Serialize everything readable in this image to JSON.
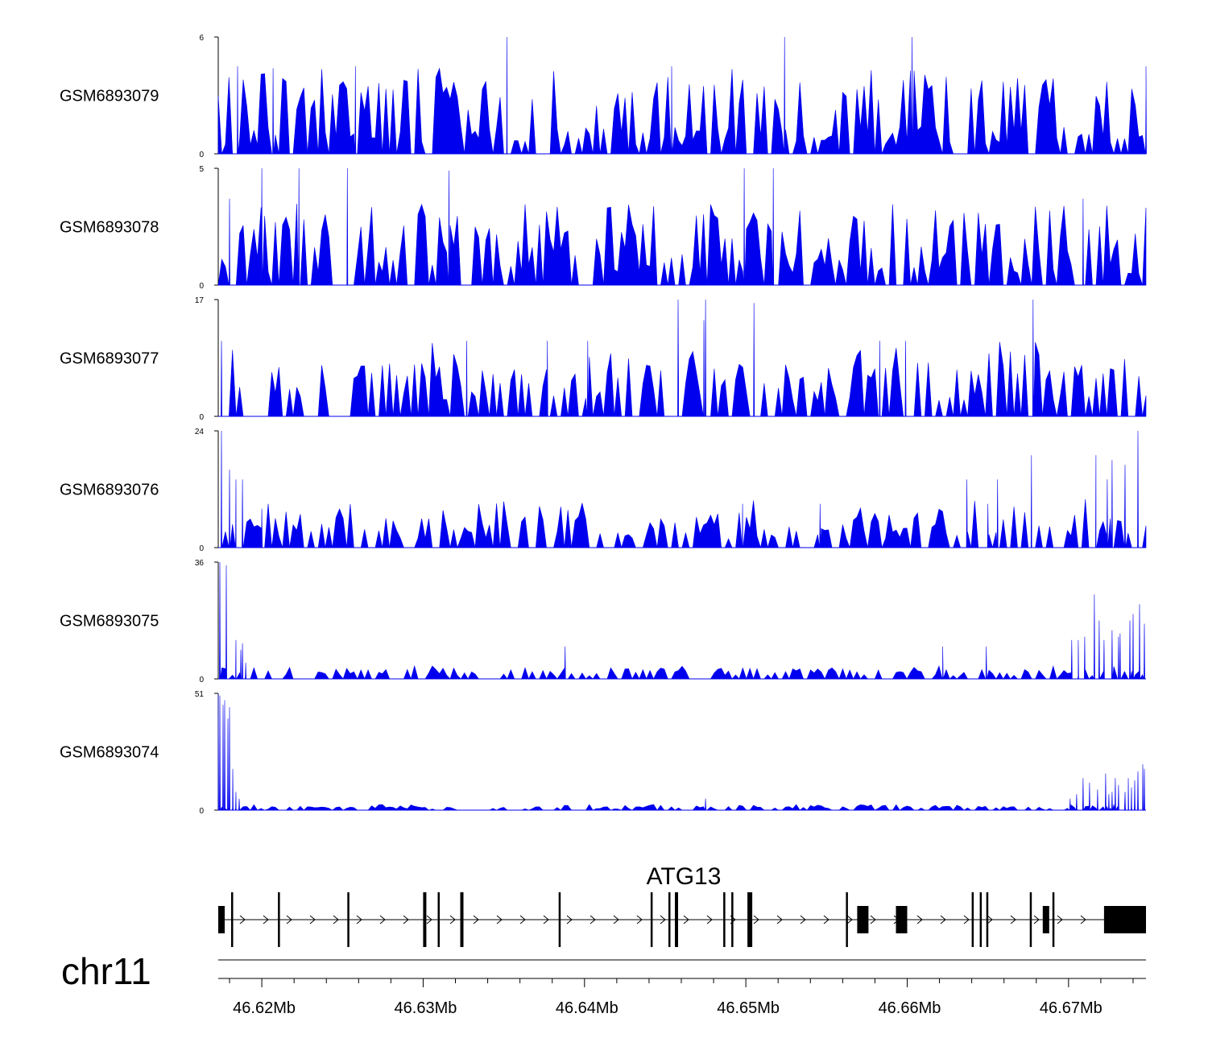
{
  "colors": {
    "signal": "#0000ee",
    "axis": "#000000",
    "gene": "#000000"
  },
  "chart_data": {
    "type": "area",
    "title": "",
    "chromosome": "chr11",
    "xlim": [
      46.6173,
      46.6748
    ],
    "x_unit": "Mb",
    "x_ticks": [
      {
        "value": 46.62,
        "label": "46.62Mb"
      },
      {
        "value": 46.63,
        "label": "46.63Mb"
      },
      {
        "value": 46.64,
        "label": "46.64Mb"
      },
      {
        "value": 46.65,
        "label": "46.65Mb"
      },
      {
        "value": 46.66,
        "label": "46.66Mb"
      },
      {
        "value": 46.67,
        "label": "46.67Mb"
      }
    ],
    "tracks": [
      {
        "name": "GSM6893079",
        "ymax": 6,
        "ymin_label": "0",
        "ymax_label": "6",
        "seed": 11,
        "base": 1.0,
        "spike_rate": 0.33,
        "spike_height": 4.4,
        "tall_peaks": [
          [
            46.6352,
            6.0
          ],
          [
            46.6524,
            6.0
          ],
          [
            46.6603,
            6.0
          ],
          [
            46.6258,
            4.5
          ],
          [
            46.6207,
            4.4
          ],
          [
            46.6748,
            4.5
          ],
          [
            46.6454,
            4.5
          ],
          [
            46.6185,
            4.5
          ]
        ],
        "edge_left": 0,
        "edge_right": 0
      },
      {
        "name": "GSM6893078",
        "ymax": 5,
        "ymin_label": "0",
        "ymax_label": "5",
        "seed": 23,
        "base": 1.2,
        "spike_rate": 0.32,
        "spike_height": 3.6,
        "tall_peaks": [
          [
            46.62,
            5.0
          ],
          [
            46.6223,
            5.0
          ],
          [
            46.6253,
            5.0
          ],
          [
            46.6316,
            4.9
          ],
          [
            46.6499,
            5.0
          ],
          [
            46.6517,
            5.0
          ],
          [
            46.618,
            3.7
          ],
          [
            46.6709,
            3.7
          ]
        ],
        "edge_left": 0,
        "edge_right": 0
      },
      {
        "name": "GSM6893077",
        "ymax": 17,
        "ymin_label": "0",
        "ymax_label": "17",
        "seed": 37,
        "base": 5.5,
        "spike_rate": 0.12,
        "spike_height": 11,
        "tall_peaks": [
          [
            46.6458,
            17.0
          ],
          [
            46.6475,
            17.0
          ],
          [
            46.6678,
            17.0
          ],
          [
            46.6505,
            16.5
          ],
          [
            46.6474,
            14.0
          ],
          [
            46.6377,
            11.0
          ],
          [
            46.6402,
            11.0
          ],
          [
            46.6327,
            11.0
          ],
          [
            46.6583,
            11.0
          ],
          [
            46.6599,
            11.0
          ],
          [
            46.6175,
            11.0
          ]
        ],
        "edge_left": 0,
        "edge_right": 0
      },
      {
        "name": "GSM6893076",
        "ymax": 24,
        "ymin_label": "0",
        "ymax_label": "24",
        "seed": 51,
        "base": 4.5,
        "spike_rate": 0.14,
        "spike_height": 10,
        "tall_peaks": [
          [
            46.6175,
            24.0
          ],
          [
            46.6743,
            24.0
          ],
          [
            46.6677,
            19.0
          ],
          [
            46.6717,
            19.0
          ],
          [
            46.6727,
            18.0
          ],
          [
            46.6735,
            17.0
          ],
          [
            46.618,
            16.0
          ],
          [
            46.6184,
            14.0
          ],
          [
            46.6188,
            14.0
          ],
          [
            46.6656,
            14.0
          ],
          [
            46.6637,
            14.0
          ],
          [
            46.6724,
            14.0
          ],
          [
            46.665,
            9.0
          ],
          [
            46.6546,
            9.0
          ],
          [
            46.6498,
            9.0
          ],
          [
            46.62,
            8.0
          ]
        ],
        "edge_left": 16,
        "edge_right": 0
      },
      {
        "name": "GSM6893075",
        "ymax": 36,
        "ymin_label": "0",
        "ymax_label": "36",
        "seed": 67,
        "base": 2.5,
        "spike_rate": 0.1,
        "spike_height": 4,
        "tall_peaks": [
          [
            46.6174,
            36.0
          ],
          [
            46.6178,
            35.0
          ],
          [
            46.6184,
            12.0
          ],
          [
            46.6188,
            11.0
          ],
          [
            46.6187,
            9.0
          ],
          [
            46.619,
            5.0
          ],
          [
            46.6388,
            10.0
          ],
          [
            46.6622,
            10.0
          ],
          [
            46.6649,
            10.0
          ],
          [
            46.6716,
            26.0
          ],
          [
            46.6719,
            18.0
          ],
          [
            46.6738,
            18.0
          ],
          [
            46.6744,
            23.0
          ],
          [
            46.6747,
            17.0
          ],
          [
            46.6727,
            15.0
          ],
          [
            46.6731,
            13.0
          ],
          [
            46.671,
            13.0
          ],
          [
            46.6702,
            12.0
          ],
          [
            46.6706,
            12.0
          ],
          [
            46.6722,
            12.0
          ],
          [
            46.6732,
            14.0
          ],
          [
            46.674,
            20.0
          ]
        ],
        "edge_left": 0,
        "edge_right": 0
      },
      {
        "name": "GSM6893074",
        "ymax": 51,
        "ymin_label": "0",
        "ymax_label": "51",
        "seed": 83,
        "base": 1.2,
        "spike_rate": 0.2,
        "spike_height": 2.5,
        "tall_peaks": [
          [
            46.6173,
            51.0
          ],
          [
            46.6174,
            50.0
          ],
          [
            46.6176,
            46.0
          ],
          [
            46.6177,
            48.0
          ],
          [
            46.6179,
            40.0
          ],
          [
            46.618,
            45.0
          ],
          [
            46.6182,
            18.0
          ],
          [
            46.6184,
            8.0
          ],
          [
            46.6186,
            5.0
          ],
          [
            46.6475,
            5.0
          ],
          [
            46.6709,
            14.0
          ],
          [
            46.6713,
            12.0
          ],
          [
            46.6723,
            16.0
          ],
          [
            46.6729,
            14.0
          ],
          [
            46.6735,
            8.0
          ],
          [
            46.6737,
            14.0
          ],
          [
            46.6743,
            17.0
          ],
          [
            46.6746,
            20.0
          ],
          [
            46.6731,
            11.0
          ],
          [
            46.6739,
            10.0
          ],
          [
            46.6701,
            5.0
          ],
          [
            46.6705,
            7.0
          ],
          [
            46.6718,
            9.0
          ],
          [
            46.6727,
            8.0
          ],
          [
            46.6725,
            7.0
          ],
          [
            46.6741,
            13.0
          ],
          [
            46.6747,
            18.0
          ]
        ],
        "edge_left": 0,
        "edge_right": 0
      }
    ],
    "gene": {
      "name": "ATG13",
      "strand": "+",
      "start": 46.6173,
      "end": 46.6748,
      "exons": [
        [
          46.6173,
          46.6177
        ],
        [
          46.6181,
          46.6182
        ],
        [
          46.621,
          46.6211
        ],
        [
          46.6253,
          46.6254
        ],
        [
          46.63,
          46.6302
        ],
        [
          46.6309,
          46.631
        ],
        [
          46.6323,
          46.6325
        ],
        [
          46.6384,
          46.6385
        ],
        [
          46.6441,
          46.6442
        ],
        [
          46.6452,
          46.6453
        ],
        [
          46.6456,
          46.6458
        ],
        [
          46.6486,
          46.6487
        ],
        [
          46.6491,
          46.6492
        ],
        [
          46.6501,
          46.6504
        ],
        [
          46.6562,
          46.6563
        ],
        [
          46.6569,
          46.6576
        ],
        [
          46.6593,
          46.66
        ],
        [
          46.664,
          46.6641
        ],
        [
          46.6645,
          46.6646
        ],
        [
          46.6649,
          46.665
        ],
        [
          46.6676,
          46.6677
        ],
        [
          46.6684,
          46.6688
        ],
        [
          46.669,
          46.6691
        ],
        [
          46.6722,
          46.6748
        ]
      ]
    }
  }
}
